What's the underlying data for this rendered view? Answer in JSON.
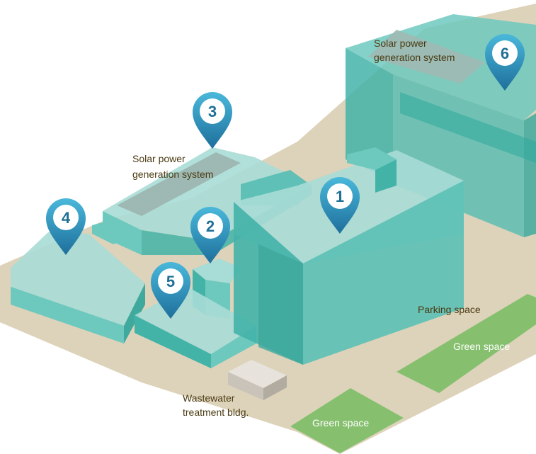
{
  "labels": {
    "solar_right_line1": "Solar power",
    "solar_right_line2": "generation system",
    "solar_left_line1": "Solar power",
    "solar_left_line2": "generation system",
    "parking": "Parking space",
    "green_right": "Green space",
    "green_bottom": "Green space",
    "wastewater_line1": "Wastewater",
    "wastewater_line2": "treatment bldg."
  },
  "markers": {
    "m1": "1",
    "m2": "2",
    "m3": "3",
    "m4": "4",
    "m5": "5",
    "m6": "6"
  },
  "colors": {
    "ground": "#ddd3ba",
    "green_space": "#86c06f",
    "building_top": "#a8dcd6",
    "building_side_light": "#6dc9be",
    "building_side_dark": "#43b3a8",
    "solar_panel": "#9eb9b3",
    "pin_gradient_top": "#4ab8da",
    "pin_gradient_bottom": "#1e6f9c",
    "pin_number": "#1f6f97"
  }
}
